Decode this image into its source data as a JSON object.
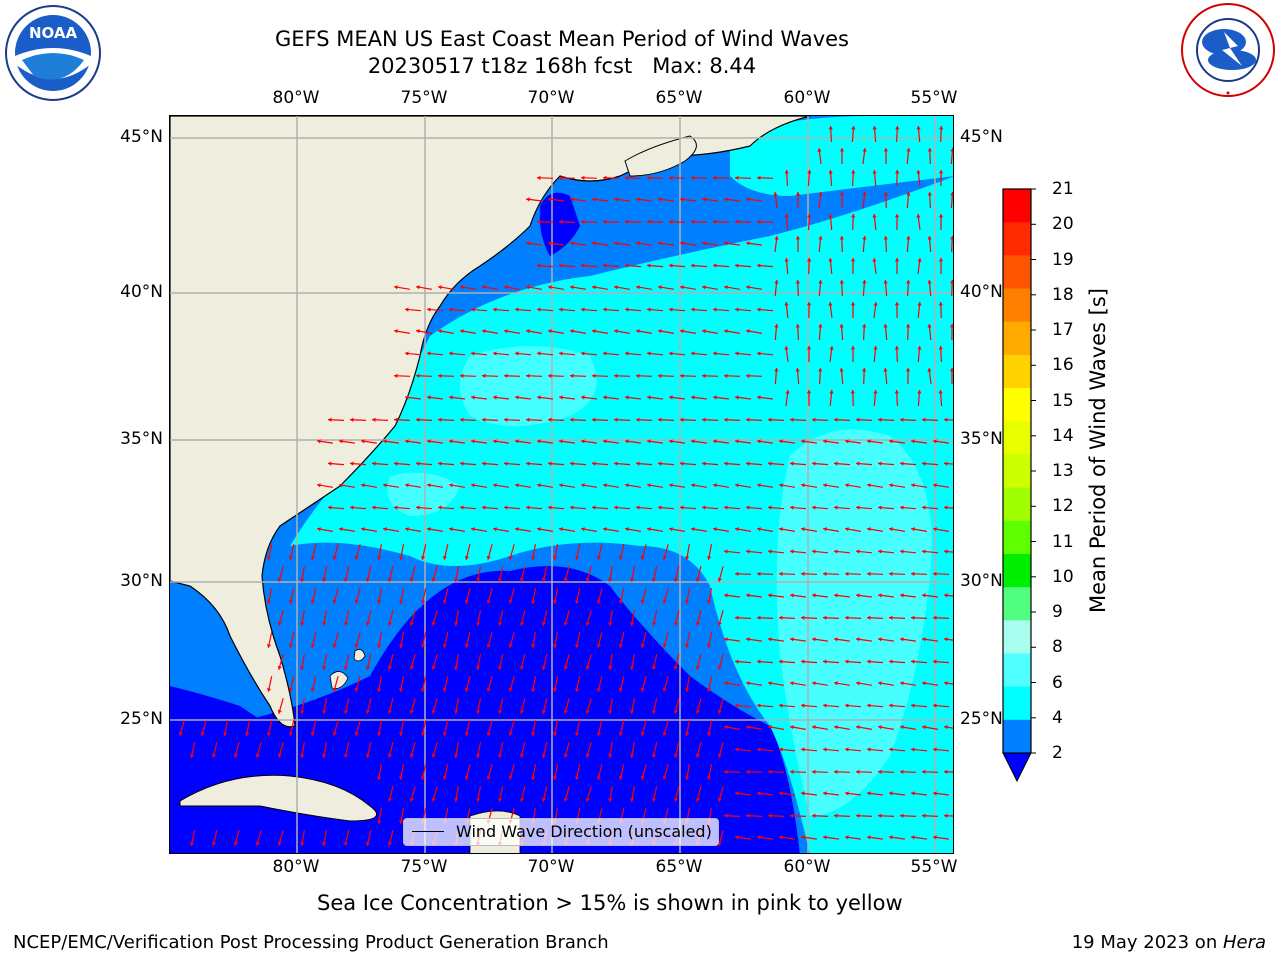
{
  "title": {
    "line1": "GEFS MEAN US East Coast Mean Period of Wind Waves",
    "line2": "20230517 t18z 168h fcst   Max: 8.44"
  },
  "logos": {
    "left": "NOAA",
    "right": "NATIONAL WEATHER SERVICE"
  },
  "axes": {
    "lon_labels": [
      "80°W",
      "75°W",
      "70°W",
      "65°W",
      "60°W",
      "55°W"
    ],
    "lat_labels": [
      "45°N",
      "40°N",
      "35°N",
      "30°N",
      "25°N"
    ]
  },
  "legend": {
    "label": "Wind Wave Direction (unscaled)"
  },
  "colorbar": {
    "title": "Mean Period of Wind Waves [s]",
    "ticks": [
      "21",
      "20",
      "19",
      "18",
      "17",
      "16",
      "15",
      "14",
      "13",
      "12",
      "11",
      "10",
      "9",
      "8",
      "6",
      "4",
      "2"
    ],
    "colors": [
      "#ff0000",
      "#ff2a00",
      "#ff5500",
      "#ff8000",
      "#ffaa00",
      "#ffd200",
      "#ffff00",
      "#e8ff00",
      "#ccff00",
      "#a0ff00",
      "#60ff00",
      "#00ee00",
      "#50ff80",
      "#a8fff0",
      "#50ffff",
      "#00ffff",
      "#0080ff"
    ],
    "under_color": "#0000ff"
  },
  "notes": {
    "ice": "Sea Ice Concentration > 15% is shown in pink to yellow"
  },
  "footer": {
    "left": "NCEP/EMC/Verification Post Processing Product Generation Branch",
    "right_prefix": "19 May 2023 on ",
    "right_host": "Hera"
  },
  "colors": {
    "land": "#efedde",
    "ocean_2_4": "#0080ff",
    "ocean_under_2": "#0000ff",
    "ocean_4_6": "#00ffff",
    "ocean_6_8": "#50ffff",
    "arrows": "#ff0000",
    "grid": "#b0b0b0"
  }
}
